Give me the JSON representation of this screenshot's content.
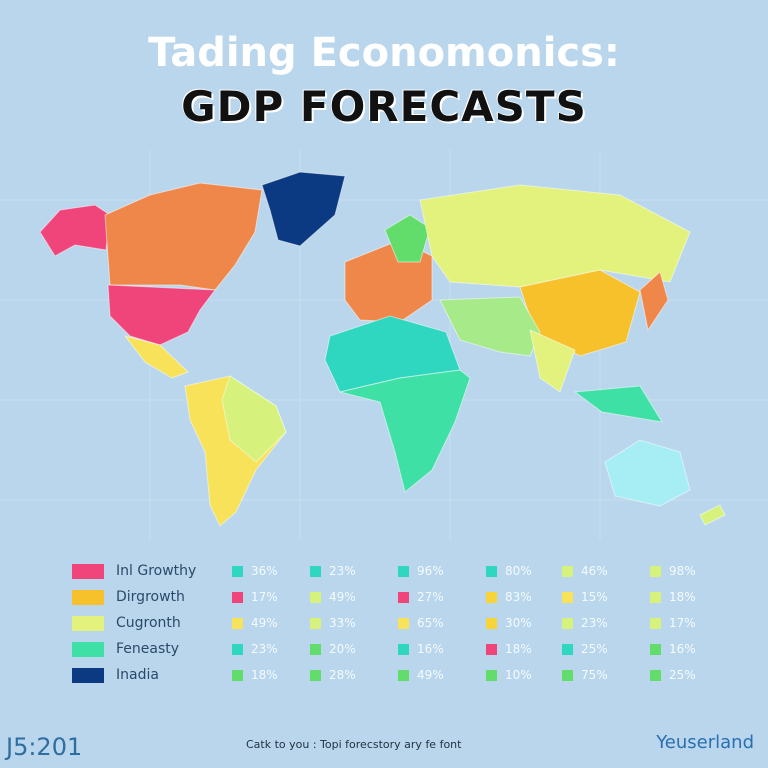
{
  "header": {
    "title": "Tading Economonics:",
    "subtitle": "GDP FORECASTS"
  },
  "legend": [
    {
      "label": "Inl Growthy",
      "color": "#f0457a"
    },
    {
      "label": "Dirgrowth",
      "color": "#f7c12c"
    },
    {
      "label": "Cugronth",
      "color": "#e2f27c"
    },
    {
      "label": "Feneasty",
      "color": "#3ee0a6"
    },
    {
      "label": "Inadia",
      "color": "#0b3a82"
    }
  ],
  "table": {
    "rows": [
      [
        {
          "text": "36%",
          "color": "#2fd6c0"
        },
        {
          "text": "23%",
          "color": "#2fd6c0"
        },
        {
          "text": "96%",
          "color": "#2fd6c0"
        },
        {
          "text": "80%",
          "color": "#2fd6c0"
        },
        {
          "text": "46%",
          "color": "#d6f27c"
        },
        {
          "text": "98%",
          "color": "#d6f27c"
        }
      ],
      [
        {
          "text": "17%",
          "color": "#f0457a"
        },
        {
          "text": "49%",
          "color": "#d6f27c"
        },
        {
          "text": "27%",
          "color": "#f0457a"
        },
        {
          "text": "83%",
          "color": "#f7d43a"
        },
        {
          "text": "15%",
          "color": "#f7e25a"
        },
        {
          "text": "18%",
          "color": "#d6f27c"
        }
      ],
      [
        {
          "text": "49%",
          "color": "#f7e25a"
        },
        {
          "text": "33%",
          "color": "#d6f27c"
        },
        {
          "text": "65%",
          "color": "#f7e25a"
        },
        {
          "text": "30%",
          "color": "#f7d43a"
        },
        {
          "text": "23%",
          "color": "#d6f27c"
        },
        {
          "text": "17%",
          "color": "#d6f27c"
        }
      ],
      [
        {
          "text": "23%",
          "color": "#2fd6c0"
        },
        {
          "text": "20%",
          "color": "#62dc6a"
        },
        {
          "text": "16%",
          "color": "#2fd6c0"
        },
        {
          "text": "18%",
          "color": "#f0457a"
        },
        {
          "text": "25%",
          "color": "#2fd6c0"
        },
        {
          "text": "16%",
          "color": "#62dc6a"
        }
      ],
      [
        {
          "text": "18%",
          "color": "#62dc6a"
        },
        {
          "text": "28%",
          "color": "#62dc6a"
        },
        {
          "text": "49%",
          "color": "#62dc6a"
        },
        {
          "text": "10%",
          "color": "#62dc6a"
        },
        {
          "text": "75%",
          "color": "#62dc6a"
        },
        {
          "text": "25%",
          "color": "#62dc6a"
        }
      ]
    ]
  },
  "footer": {
    "code": "J5:201",
    "note": "Catk to you : Topi forecstory ary fe font",
    "brand": "Yeuserland"
  }
}
